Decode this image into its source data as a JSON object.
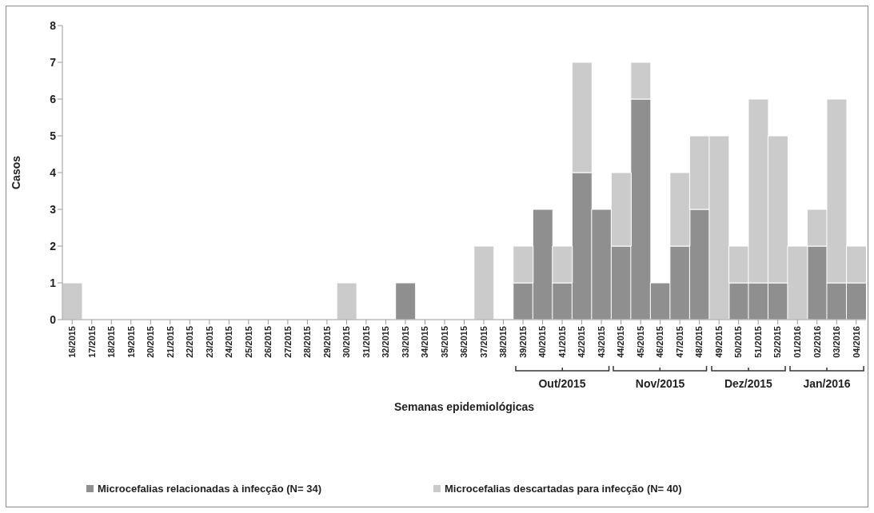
{
  "chart_data": {
    "type": "bar",
    "stacked": true,
    "xlabel": "Semanas epidemiológicas",
    "ylabel": "Casos",
    "categories": [
      "16/2015",
      "17/2015",
      "18/2015",
      "19/2015",
      "20/2015",
      "21/2015",
      "22/2015",
      "23/2015",
      "24/2015",
      "25/2015",
      "26/2015",
      "27/2015",
      "28/2015",
      "29/2015",
      "30/2015",
      "31/2015",
      "32/2015",
      "33/2015",
      "34/2015",
      "35/2015",
      "36/2015",
      "37/2015",
      "38/2015",
      "39/2015",
      "40/2015",
      "41/2015",
      "42/2015",
      "43/2015",
      "44/2015",
      "45/2015",
      "46/2015",
      "47/2015",
      "48/2015",
      "49/2015",
      "50/2015",
      "51/2015",
      "52/2015",
      "01/2016",
      "02/2016",
      "03/2016",
      "04/2016"
    ],
    "series": [
      {
        "name": "Microcefalias relacionadas à infecção (N= 34)",
        "color": "#8f8f8f",
        "values": [
          0,
          0,
          0,
          0,
          0,
          0,
          0,
          0,
          0,
          0,
          0,
          0,
          0,
          0,
          0,
          0,
          0,
          1,
          0,
          0,
          0,
          0,
          0,
          1,
          3,
          1,
          4,
          3,
          2,
          6,
          1,
          2,
          3,
          0,
          1,
          1,
          1,
          0,
          2,
          1,
          1
        ]
      },
      {
        "name": "Microcefalias descartadas para infecção (N= 40)",
        "color": "#cbcbcb",
        "values": [
          1,
          0,
          0,
          0,
          0,
          0,
          0,
          0,
          0,
          0,
          0,
          0,
          0,
          0,
          1,
          0,
          0,
          0,
          0,
          0,
          0,
          2,
          0,
          1,
          0,
          1,
          3,
          0,
          2,
          1,
          0,
          2,
          2,
          5,
          1,
          5,
          4,
          2,
          1,
          5,
          1
        ]
      }
    ],
    "ylim": [
      0,
      8
    ],
    "yticks": [
      0,
      1,
      2,
      3,
      4,
      5,
      6,
      7,
      8
    ],
    "grid": false,
    "legend": "bottom",
    "annotations": [
      "Out/2015",
      "Nov/2015",
      "Dez/2015",
      "Jan/2016"
    ]
  }
}
